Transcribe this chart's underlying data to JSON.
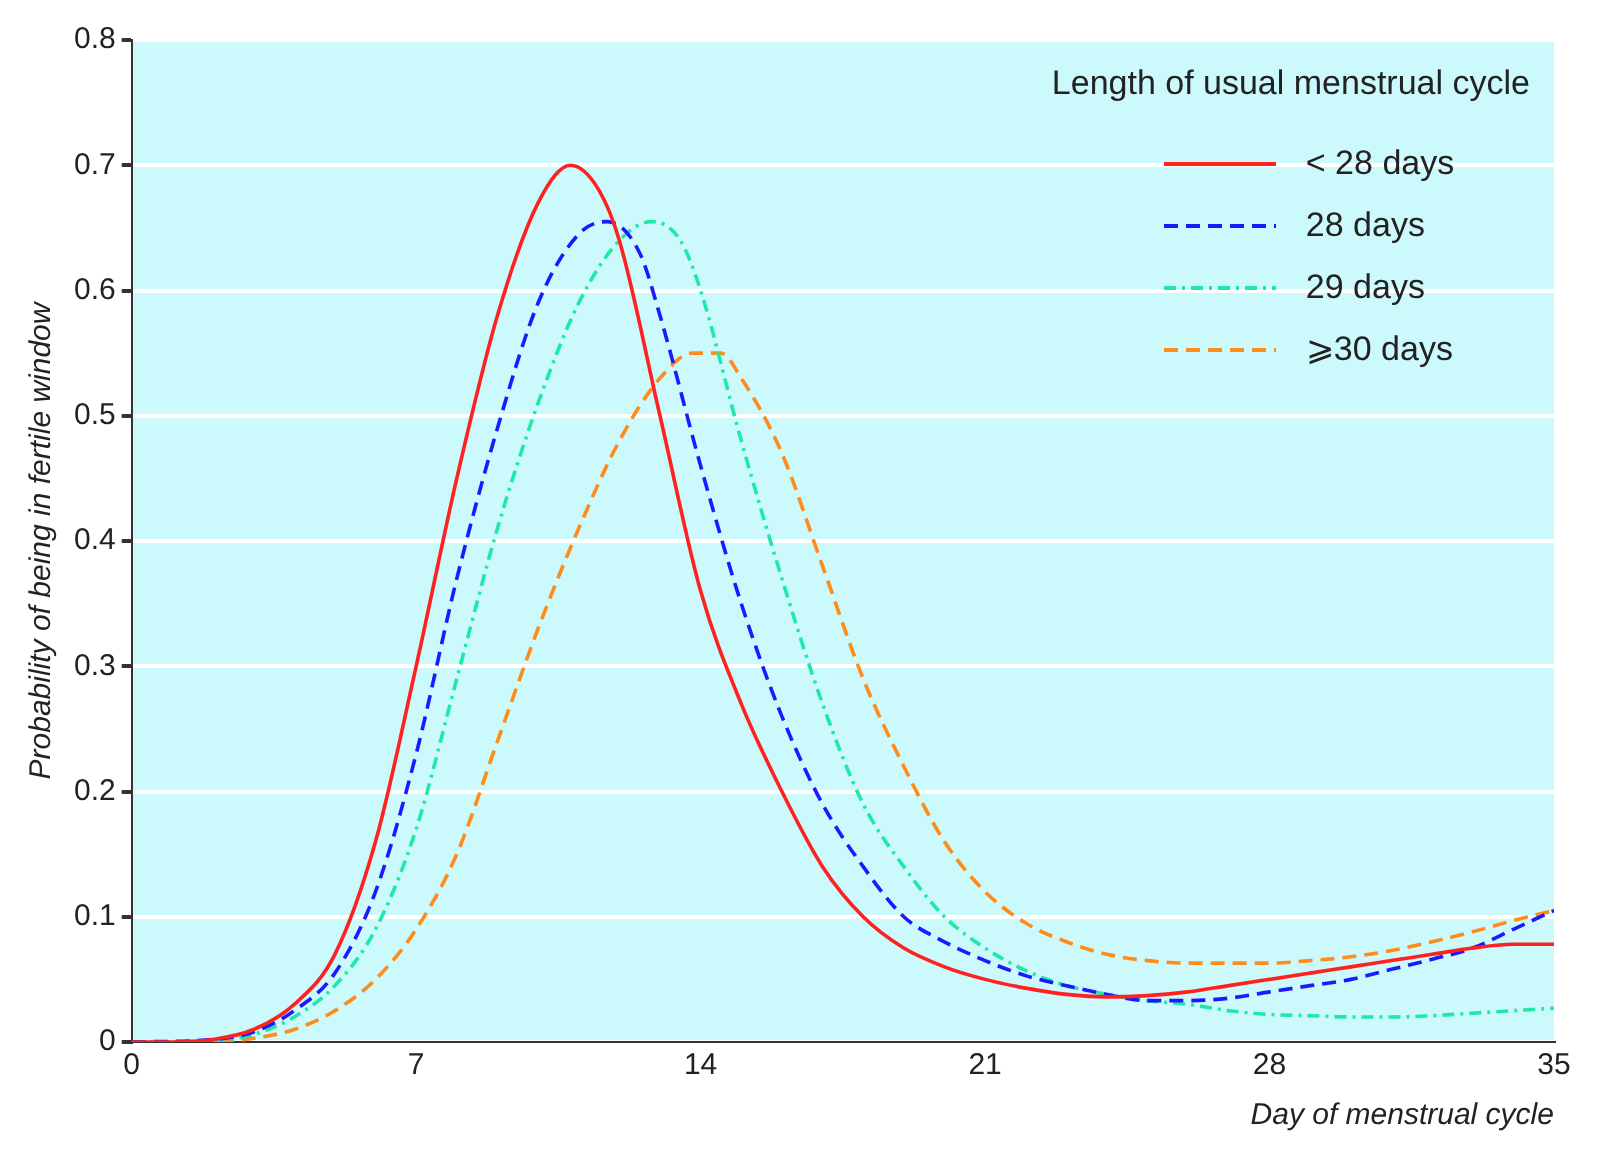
{
  "chart_data": {
    "type": "line",
    "xlabel": "Day of menstrual cycle",
    "ylabel": "Probability of being in fertile window",
    "legend_title": "Length of usual menstrual cycle",
    "legend": "top right",
    "grid": "y",
    "marker": "none",
    "xlim": [
      0,
      35
    ],
    "xticks": [
      0,
      7,
      14,
      21,
      28,
      35
    ],
    "ylim": [
      0,
      0.8
    ],
    "yticks": [
      0,
      0.1,
      0.2,
      0.3,
      0.4,
      0.5,
      0.6,
      0.7,
      0.8
    ],
    "series": [
      {
        "name": "< 28 days",
        "color": "#ff2020",
        "line_style": "solid",
        "x": [
          0,
          1,
          2,
          3,
          4,
          5,
          6,
          7,
          8,
          9,
          10,
          10.8,
          11.5,
          12,
          13,
          14,
          15,
          16,
          17,
          18,
          19,
          20,
          21,
          22,
          23,
          24,
          25,
          26,
          27,
          28,
          29,
          30,
          31,
          32,
          33,
          34,
          35
        ],
        "values": [
          0,
          0,
          0.002,
          0.01,
          0.03,
          0.07,
          0.16,
          0.3,
          0.45,
          0.58,
          0.67,
          0.7,
          0.68,
          0.64,
          0.5,
          0.36,
          0.27,
          0.2,
          0.14,
          0.1,
          0.075,
          0.06,
          0.05,
          0.043,
          0.038,
          0.036,
          0.037,
          0.04,
          0.045,
          0.05,
          0.055,
          0.06,
          0.065,
          0.07,
          0.075,
          0.078,
          0.078
        ]
      },
      {
        "name": "28 days",
        "color": "#1a1aff",
        "line_style": "dashed",
        "x": [
          0,
          2,
          3,
          4,
          5,
          6,
          7,
          8,
          9,
          10,
          11,
          11.7,
          12.5,
          13,
          14,
          15,
          16,
          17,
          18,
          19,
          20,
          21,
          22,
          23,
          24,
          25,
          26,
          27,
          28,
          29,
          30,
          31,
          32,
          33,
          34,
          35
        ],
        "values": [
          0,
          0.002,
          0.008,
          0.025,
          0.055,
          0.12,
          0.23,
          0.37,
          0.49,
          0.59,
          0.645,
          0.655,
          0.63,
          0.58,
          0.46,
          0.35,
          0.26,
          0.19,
          0.14,
          0.1,
          0.08,
          0.065,
          0.053,
          0.045,
          0.038,
          0.033,
          0.033,
          0.035,
          0.04,
          0.045,
          0.05,
          0.058,
          0.066,
          0.075,
          0.09,
          0.105
        ]
      },
      {
        "name": "29 days",
        "color": "#20e8a8",
        "line_style": "dotted",
        "x": [
          0,
          2,
          3,
          4,
          5,
          6,
          7,
          8,
          9,
          10,
          11,
          12,
          12.8,
          13.5,
          14,
          15,
          16,
          17,
          18,
          19,
          20,
          21,
          22,
          23,
          24,
          25,
          26,
          27,
          28,
          29,
          30,
          31,
          32,
          33,
          34,
          35
        ],
        "values": [
          0,
          0.001,
          0.006,
          0.02,
          0.045,
          0.09,
          0.17,
          0.29,
          0.41,
          0.51,
          0.59,
          0.64,
          0.655,
          0.64,
          0.6,
          0.48,
          0.37,
          0.27,
          0.19,
          0.14,
          0.1,
          0.075,
          0.057,
          0.045,
          0.038,
          0.033,
          0.03,
          0.025,
          0.022,
          0.021,
          0.02,
          0.02,
          0.021,
          0.023,
          0.025,
          0.027
        ]
      },
      {
        "name": "⩾30 days",
        "color": "#ff8c1a",
        "line_style": "dashed",
        "x": [
          0,
          2,
          3,
          4,
          5,
          6,
          7,
          8,
          9,
          10,
          11,
          12,
          13,
          13.8,
          14.5,
          15,
          16,
          17,
          18,
          19,
          20,
          21,
          22,
          23,
          24,
          25,
          26,
          27,
          28,
          29,
          30,
          31,
          32,
          33,
          34,
          35
        ],
        "values": [
          0,
          0,
          0.003,
          0.01,
          0.025,
          0.05,
          0.09,
          0.15,
          0.24,
          0.33,
          0.41,
          0.48,
          0.53,
          0.55,
          0.55,
          0.53,
          0.47,
          0.38,
          0.29,
          0.22,
          0.16,
          0.12,
          0.095,
          0.08,
          0.07,
          0.065,
          0.063,
          0.063,
          0.063,
          0.065,
          0.068,
          0.073,
          0.08,
          0.088,
          0.097,
          0.105
        ]
      }
    ]
  }
}
